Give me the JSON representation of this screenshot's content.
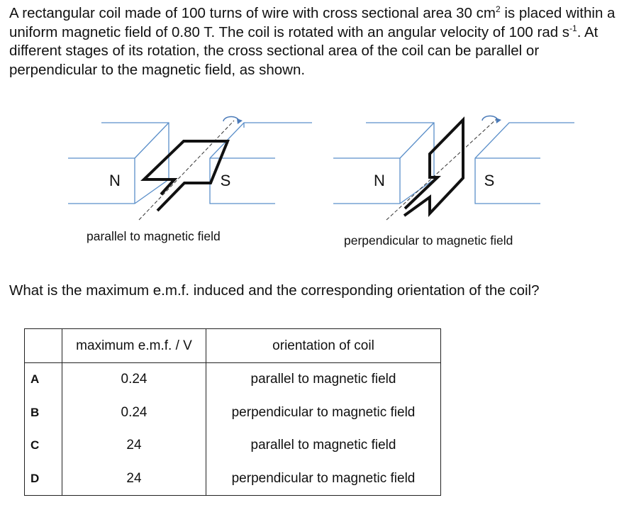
{
  "stem": {
    "part1": "A rectangular coil made of 100 turns of wire with cross sectional area 30 cm",
    "sup1": "2",
    "part2": " is placed within a uniform magnetic field of 0.80 T. The coil is rotated with an angular velocity of 100 rad s",
    "sup2": "-1",
    "part3": ". At different stages of its rotation, the cross sectional area of the coil can be parallel or perpendicular to the magnetic field, as shown."
  },
  "figure": {
    "left": {
      "pole_n": "N",
      "pole_s": "S",
      "caption": "parallel to magnetic field"
    },
    "right": {
      "pole_n": "N",
      "pole_s": "S",
      "caption": "perpendicular to magnetic field"
    }
  },
  "question": "What is the maximum e.m.f. induced and the corresponding orientation of the coil?",
  "table": {
    "headers": [
      "",
      "maximum e.m.f. / V",
      "orientation of coil"
    ],
    "rows": [
      {
        "key": "A",
        "emf": "0.24",
        "orientation": "parallel to magnetic field"
      },
      {
        "key": "B",
        "emf": "0.24",
        "orientation": "perpendicular to magnetic field"
      },
      {
        "key": "C",
        "emf": "24",
        "orientation": "parallel to magnetic field"
      },
      {
        "key": "D",
        "emf": "24",
        "orientation": "perpendicular to magnetic field"
      }
    ]
  }
}
